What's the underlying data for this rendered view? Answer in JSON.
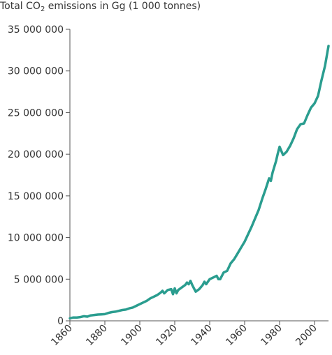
{
  "chart_data": {
    "type": "line",
    "title": {
      "prefix": "Total CO",
      "subscript": "2",
      "suffix": " emissions in Gg (1 000 tonnes)"
    },
    "xlabel": "",
    "ylabel": "",
    "xlim": [
      1860,
      2008
    ],
    "ylim": [
      0,
      35000000
    ],
    "x_ticks": [
      1860,
      1880,
      1900,
      1920,
      1940,
      1960,
      1980,
      2000
    ],
    "y_ticks": [
      0,
      5000000,
      10000000,
      15000000,
      20000000,
      25000000,
      30000000,
      35000000
    ],
    "y_tick_labels": [
      "0",
      "5 000 000",
      "10 000 000",
      "15 000 000",
      "20 000 000",
      "25 000 000",
      "30 000 000",
      "35 000 000"
    ],
    "grid": false,
    "line_color": "#2a9d8f",
    "series": [
      {
        "x": [
          1860,
          1862,
          1864,
          1866,
          1868,
          1870,
          1872,
          1874,
          1876,
          1878,
          1880,
          1882,
          1884,
          1886,
          1888,
          1890,
          1892,
          1894,
          1896,
          1898,
          1900,
          1902,
          1904,
          1906,
          1908,
          1910,
          1912,
          1913,
          1914,
          1916,
          1918,
          1919,
          1920,
          1921,
          1922,
          1924,
          1926,
          1927,
          1928,
          1929,
          1930,
          1931,
          1932,
          1934,
          1936,
          1937,
          1938,
          1940,
          1942,
          1944,
          1945,
          1946,
          1948,
          1950,
          1952,
          1954,
          1956,
          1958,
          1960,
          1962,
          1964,
          1966,
          1968,
          1970,
          1972,
          1974,
          1975,
          1976,
          1978,
          1979,
          1980,
          1981,
          1982,
          1984,
          1986,
          1988,
          1990,
          1992,
          1994,
          1996,
          1998,
          2000,
          2002,
          2004,
          2006,
          2008
        ],
        "values": [
          300000,
          400000,
          400000,
          450000,
          550000,
          500000,
          650000,
          700000,
          750000,
          780000,
          800000,
          950000,
          1050000,
          1100000,
          1200000,
          1300000,
          1350000,
          1500000,
          1600000,
          1800000,
          2000000,
          2200000,
          2400000,
          2700000,
          2900000,
          3100000,
          3400000,
          3600000,
          3300000,
          3700000,
          3800000,
          3200000,
          3900000,
          3300000,
          3700000,
          4000000,
          4300000,
          4600000,
          4400000,
          4800000,
          4300000,
          3900000,
          3500000,
          3800000,
          4300000,
          4700000,
          4400000,
          5000000,
          5200000,
          5400000,
          5000000,
          5000000,
          5800000,
          6000000,
          6900000,
          7400000,
          8100000,
          8800000,
          9500000,
          10400000,
          11300000,
          12300000,
          13300000,
          14600000,
          15800000,
          17100000,
          16800000,
          17800000,
          19200000,
          20100000,
          20900000,
          20400000,
          19900000,
          20300000,
          21000000,
          21900000,
          23000000,
          23600000,
          23700000,
          24700000,
          25600000,
          26100000,
          27000000,
          28900000,
          30600000,
          33000000
        ]
      }
    ]
  }
}
